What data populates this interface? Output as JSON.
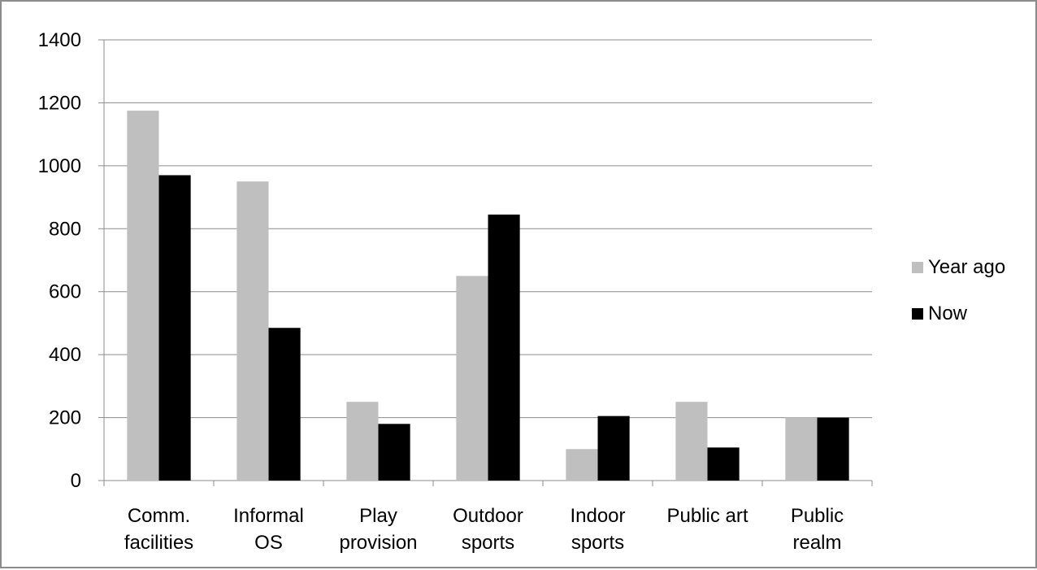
{
  "chart_data": {
    "type": "bar",
    "title": "",
    "xlabel": "",
    "ylabel": "",
    "categories": [
      [
        "Comm.",
        "facilities"
      ],
      [
        "Informal",
        "OS"
      ],
      [
        "Play",
        "provision"
      ],
      [
        "Outdoor",
        "sports"
      ],
      [
        "Indoor",
        "sports"
      ],
      [
        "Public art"
      ],
      [
        "Public",
        "realm"
      ]
    ],
    "series": [
      {
        "name": "Year ago",
        "color": "#bfbfbf",
        "values": [
          1175,
          950,
          250,
          650,
          100,
          250,
          200
        ]
      },
      {
        "name": "Now",
        "color": "#000000",
        "values": [
          970,
          485,
          180,
          845,
          205,
          105,
          200
        ]
      }
    ],
    "ylim": [
      0,
      1400
    ],
    "yticks": [
      0,
      200,
      400,
      600,
      800,
      1000,
      1200,
      1400
    ],
    "grid": true,
    "gridline_color": "#8c8c8c",
    "legend_position": "right"
  }
}
